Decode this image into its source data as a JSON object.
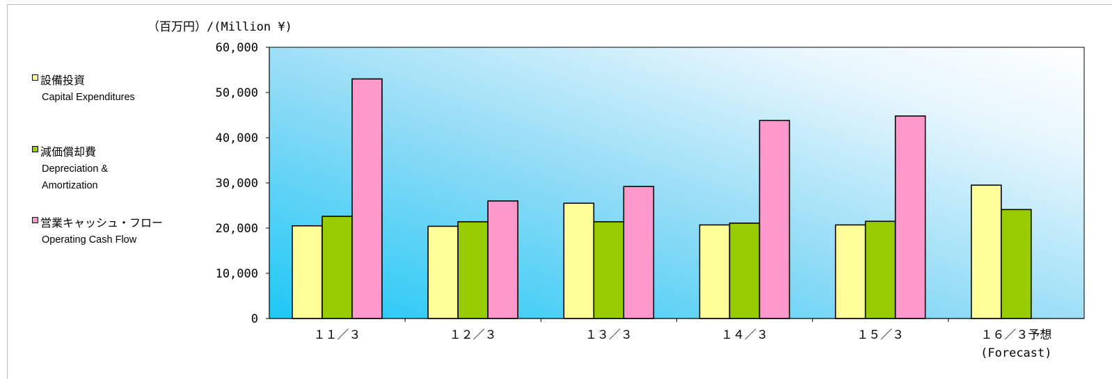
{
  "unit_label": "（百万円）/(Million ¥)",
  "legend": [
    {
      "jp": "設備投資",
      "en": [
        "Capital Expenditures"
      ],
      "color": "#ffff99"
    },
    {
      "jp": "減価償却費",
      "en": [
        "Depreciation &",
        "Amortization"
      ],
      "color": "#99cc00"
    },
    {
      "jp": "営業キャッシュ・フロー",
      "en": [
        "Operating Cash Flow"
      ],
      "color": "#ff99cc"
    }
  ],
  "chart_data": {
    "type": "bar",
    "categories": [
      "１１／３",
      "１２／３",
      "１３／３",
      "１４／３",
      "１５／３",
      "１６／３予想"
    ],
    "category_sublabels": [
      "",
      "",
      "",
      "",
      "",
      "(Forecast)"
    ],
    "series": [
      {
        "name": "設備投資 Capital Expenditures",
        "color": "#ffff99",
        "values": [
          20500,
          20400,
          25500,
          20700,
          20700,
          29500
        ]
      },
      {
        "name": "減価償却費 Depreciation & Amortization",
        "color": "#99cc00",
        "values": [
          22600,
          21400,
          21400,
          21100,
          21500,
          24100
        ]
      },
      {
        "name": "営業キャッシュ・フロー Operating Cash Flow",
        "color": "#ff99cc",
        "values": [
          53000,
          26000,
          29200,
          43800,
          44800,
          null
        ]
      }
    ],
    "yticks": [
      "0",
      "10,000",
      "20,000",
      "30,000",
      "40,000",
      "50,000",
      "60,000"
    ],
    "ylim": [
      0,
      60000
    ],
    "ystep": 10000,
    "grid": false,
    "background": "sky-blue gradient",
    "legend_position": "left"
  }
}
